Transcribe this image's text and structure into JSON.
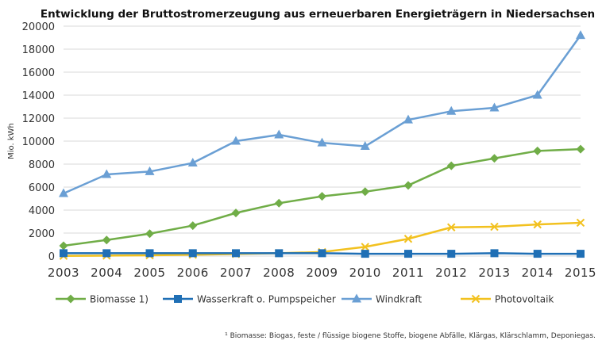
{
  "chart_data": {
    "type": "line",
    "title": "Entwicklung der Bruttostromerzeugung aus erneuerbaren Energieträgern in Niedersachsen",
    "ylabel": "Mio. kWh",
    "xlabel": "",
    "ylim": [
      0,
      20000
    ],
    "yticks": [
      0,
      2000,
      4000,
      6000,
      8000,
      10000,
      12000,
      14000,
      16000,
      18000,
      20000
    ],
    "grid": true,
    "legend_position": "bottom",
    "categories": [
      "2003",
      "2004",
      "2005",
      "2006",
      "2007",
      "2008",
      "2009",
      "2010",
      "2011",
      "2012",
      "2013",
      "2014",
      "2015"
    ],
    "series": [
      {
        "name": "Biomasse 1)",
        "color": "#70ad47",
        "marker": "diamond",
        "values": [
          900,
          1400,
          1950,
          2650,
          3750,
          4600,
          5200,
          5600,
          6150,
          7850,
          8500,
          9150,
          9300
        ]
      },
      {
        "name": "Wasserkraft o. Pumpspeicher",
        "color": "#1f6fb5",
        "marker": "square",
        "values": [
          250,
          250,
          250,
          250,
          250,
          250,
          250,
          200,
          200,
          200,
          250,
          200,
          200
        ]
      },
      {
        "name": "Windkraft",
        "color": "#6a9fd4",
        "marker": "triangle",
        "values": [
          5450,
          7100,
          7350,
          8100,
          10000,
          10550,
          9850,
          9550,
          11850,
          12600,
          12900,
          14000,
          19200
        ]
      },
      {
        "name": "Photovoltaik",
        "color": "#f2c11f",
        "marker": "x",
        "values": [
          20,
          40,
          70,
          120,
          180,
          250,
          350,
          800,
          1500,
          2500,
          2550,
          2750,
          2900
        ]
      }
    ]
  },
  "footnote": "¹ Biomasse: Biogas, feste / flüssige biogene Stoffe, biogene Abfälle, Klärgas, Klärschlamm, Deponiegas."
}
